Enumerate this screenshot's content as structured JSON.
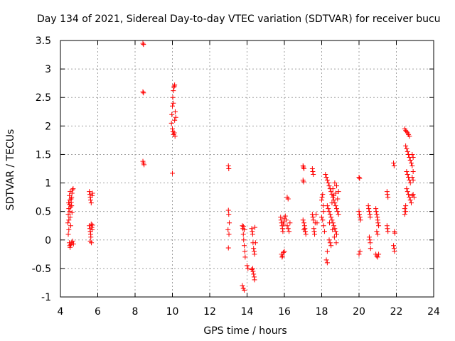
{
  "chart_data": {
    "type": "scatter",
    "title": "Day 134 of 2021, Sidereal Day-to-day VTEC variation (SDTVAR) for receiver bucu",
    "xlabel": "GPS time / hours",
    "ylabel": "SDTVAR / TECUs",
    "xlim": [
      4,
      24
    ],
    "ylim": [
      -1,
      3.5
    ],
    "xticks": [
      4,
      6,
      8,
      10,
      12,
      14,
      16,
      18,
      20,
      22,
      24
    ],
    "yticks": [
      -1,
      -0.5,
      0,
      0.5,
      1,
      1.5,
      2,
      2.5,
      3,
      3.5
    ],
    "xtick_labels": [
      "4",
      "6",
      "8",
      "10",
      "12",
      "14",
      "16",
      "18",
      "20",
      "22",
      "24"
    ],
    "ytick_labels": [
      "-1",
      "-0.5",
      "0",
      "0.5",
      "1",
      "1.5",
      "2",
      "2.5",
      "3",
      "3.5"
    ],
    "grid": true,
    "marker": "+",
    "color": "#ff0000",
    "series": [
      {
        "name": "SDTVAR",
        "points": [
          [
            4.4,
            0.3
          ],
          [
            4.42,
            0.45
          ],
          [
            4.45,
            0.55
          ],
          [
            4.48,
            0.62
          ],
          [
            4.5,
            0.7
          ],
          [
            4.52,
            0.4
          ],
          [
            4.55,
            0.58
          ],
          [
            4.58,
            0.66
          ],
          [
            4.6,
            0.75
          ],
          [
            4.62,
            0.82
          ],
          [
            4.65,
            0.88
          ],
          [
            4.68,
            0.9
          ],
          [
            4.45,
            0.35
          ],
          [
            4.5,
            0.5
          ],
          [
            4.55,
            0.25
          ],
          [
            4.6,
            0.6
          ],
          [
            4.42,
            0.1
          ],
          [
            4.45,
            0.18
          ],
          [
            4.48,
            -0.05
          ],
          [
            4.5,
            -0.1
          ],
          [
            4.52,
            -0.13
          ],
          [
            4.55,
            -0.08
          ],
          [
            4.6,
            -0.05
          ],
          [
            4.65,
            -0.02
          ],
          [
            4.7,
            -0.07
          ],
          [
            4.48,
            0.78
          ],
          [
            4.52,
            0.85
          ],
          [
            4.57,
            0.72
          ],
          [
            4.62,
            0.48
          ],
          [
            4.44,
            0.65
          ],
          [
            5.55,
            0.85
          ],
          [
            5.58,
            0.8
          ],
          [
            5.6,
            0.75
          ],
          [
            5.62,
            0.7
          ],
          [
            5.65,
            0.65
          ],
          [
            5.7,
            0.78
          ],
          [
            5.72,
            0.82
          ],
          [
            5.55,
            0.25
          ],
          [
            5.58,
            0.2
          ],
          [
            5.6,
            0.15
          ],
          [
            5.62,
            0.1
          ],
          [
            5.65,
            0.28
          ],
          [
            5.68,
            0.22
          ],
          [
            5.6,
            -0.02
          ],
          [
            5.63,
            0.05
          ],
          [
            5.66,
            -0.05
          ],
          [
            5.7,
            0.18
          ],
          [
            5.72,
            0.26
          ],
          [
            8.42,
            3.45
          ],
          [
            8.45,
            3.43
          ],
          [
            8.42,
            2.6
          ],
          [
            8.45,
            2.58
          ],
          [
            8.42,
            1.38
          ],
          [
            8.45,
            1.35
          ],
          [
            8.48,
            1.32
          ],
          [
            9.95,
            2.05
          ],
          [
            9.97,
            2.2
          ],
          [
            10.0,
            2.35
          ],
          [
            10.02,
            2.5
          ],
          [
            10.05,
            2.62
          ],
          [
            10.08,
            2.68
          ],
          [
            10.1,
            2.7
          ],
          [
            10.12,
            2.72
          ],
          [
            10.0,
            1.95
          ],
          [
            10.03,
            1.9
          ],
          [
            10.06,
            1.85
          ],
          [
            10.1,
            1.88
          ],
          [
            10.14,
            1.82
          ],
          [
            10.12,
            2.1
          ],
          [
            10.15,
            2.25
          ],
          [
            10.18,
            2.15
          ],
          [
            10.05,
            2.4
          ],
          [
            10.0,
            1.17
          ],
          [
            13.0,
            1.3
          ],
          [
            13.02,
            1.25
          ],
          [
            13.0,
            0.52
          ],
          [
            13.02,
            0.45
          ],
          [
            13.05,
            0.3
          ],
          [
            12.98,
            0.18
          ],
          [
            13.03,
            0.1
          ],
          [
            13.0,
            -0.14
          ],
          [
            13.75,
            0.25
          ],
          [
            13.78,
            0.2
          ],
          [
            13.8,
            0.1
          ],
          [
            13.82,
            0.0
          ],
          [
            13.85,
            -0.1
          ],
          [
            13.88,
            -0.2
          ],
          [
            13.9,
            -0.3
          ],
          [
            13.8,
            0.24
          ],
          [
            13.85,
            0.18
          ],
          [
            13.75,
            -0.8
          ],
          [
            13.8,
            -0.85
          ],
          [
            13.85,
            -0.88
          ],
          [
            14.0,
            -0.45
          ],
          [
            14.05,
            -0.5
          ],
          [
            14.25,
            0.2
          ],
          [
            14.28,
            0.15
          ],
          [
            14.3,
            0.1
          ],
          [
            14.32,
            -0.05
          ],
          [
            14.35,
            -0.15
          ],
          [
            14.38,
            -0.2
          ],
          [
            14.4,
            -0.25
          ],
          [
            14.3,
            -0.5
          ],
          [
            14.32,
            -0.55
          ],
          [
            14.35,
            -0.6
          ],
          [
            14.38,
            -0.65
          ],
          [
            14.4,
            -0.7
          ],
          [
            14.25,
            -0.52
          ],
          [
            14.45,
            -0.05
          ],
          [
            14.42,
            0.22
          ],
          [
            15.8,
            0.4
          ],
          [
            15.82,
            0.35
          ],
          [
            15.85,
            0.3
          ],
          [
            15.88,
            0.25
          ],
          [
            15.9,
            0.2
          ],
          [
            15.92,
            0.15
          ],
          [
            15.95,
            0.28
          ],
          [
            15.98,
            0.32
          ],
          [
            16.0,
            0.38
          ],
          [
            16.05,
            0.42
          ],
          [
            16.1,
            0.35
          ],
          [
            16.15,
            0.25
          ],
          [
            16.2,
            0.2
          ],
          [
            16.25,
            0.15
          ],
          [
            16.3,
            0.3
          ],
          [
            15.85,
            -0.25
          ],
          [
            15.88,
            -0.3
          ],
          [
            15.9,
            -0.28
          ],
          [
            15.95,
            -0.22
          ],
          [
            16.0,
            -0.2
          ],
          [
            16.15,
            0.75
          ],
          [
            16.2,
            0.72
          ],
          [
            17.0,
            1.3
          ],
          [
            17.02,
            1.28
          ],
          [
            17.05,
            1.25
          ],
          [
            17.0,
            1.05
          ],
          [
            17.03,
            1.02
          ],
          [
            17.05,
            0.3
          ],
          [
            17.08,
            0.25
          ],
          [
            17.1,
            0.2
          ],
          [
            17.12,
            0.15
          ],
          [
            17.15,
            0.1
          ],
          [
            17.0,
            0.35
          ],
          [
            17.05,
            0.18
          ],
          [
            17.5,
            1.25
          ],
          [
            17.52,
            1.2
          ],
          [
            17.55,
            1.15
          ],
          [
            17.5,
            0.45
          ],
          [
            17.53,
            0.4
          ],
          [
            17.55,
            0.35
          ],
          [
            17.58,
            0.2
          ],
          [
            17.6,
            0.15
          ],
          [
            17.62,
            0.1
          ],
          [
            17.65,
            0.3
          ],
          [
            17.7,
            0.45
          ],
          [
            17.75,
            0.3
          ],
          [
            18.0,
            0.7
          ],
          [
            18.02,
            0.75
          ],
          [
            18.05,
            0.8
          ],
          [
            18.08,
            0.6
          ],
          [
            18.1,
            0.5
          ],
          [
            18.0,
            0.4
          ],
          [
            18.05,
            0.35
          ],
          [
            18.1,
            0.25
          ],
          [
            18.15,
            0.15
          ],
          [
            18.2,
            1.15
          ],
          [
            18.25,
            1.1
          ],
          [
            18.3,
            1.05
          ],
          [
            18.35,
            1.0
          ],
          [
            18.4,
            0.95
          ],
          [
            18.45,
            0.9
          ],
          [
            18.5,
            0.85
          ],
          [
            18.55,
            0.8
          ],
          [
            18.6,
            0.75
          ],
          [
            18.65,
            0.7
          ],
          [
            18.7,
            0.65
          ],
          [
            18.75,
            0.6
          ],
          [
            18.8,
            0.55
          ],
          [
            18.85,
            0.5
          ],
          [
            18.9,
            0.45
          ],
          [
            18.3,
            0.6
          ],
          [
            18.35,
            0.55
          ],
          [
            18.4,
            0.5
          ],
          [
            18.45,
            0.45
          ],
          [
            18.5,
            0.4
          ],
          [
            18.55,
            0.35
          ],
          [
            18.6,
            0.3
          ],
          [
            18.65,
            0.25
          ],
          [
            18.7,
            0.2
          ],
          [
            18.75,
            0.15
          ],
          [
            18.8,
            0.1
          ],
          [
            18.4,
            0.0
          ],
          [
            18.45,
            -0.05
          ],
          [
            18.5,
            -0.1
          ],
          [
            18.3,
            -0.2
          ],
          [
            18.25,
            -0.35
          ],
          [
            18.3,
            -0.4
          ],
          [
            18.6,
            0.9
          ],
          [
            18.7,
            1.0
          ],
          [
            18.8,
            0.95
          ],
          [
            18.9,
            0.85
          ],
          [
            18.55,
            0.65
          ],
          [
            18.65,
            0.78
          ],
          [
            18.75,
            0.82
          ],
          [
            18.85,
            0.72
          ],
          [
            18.42,
            0.3
          ],
          [
            18.58,
            0.18
          ],
          [
            18.68,
            0.05
          ],
          [
            18.78,
            -0.05
          ],
          [
            20.0,
            1.1
          ],
          [
            20.03,
            1.08
          ],
          [
            20.0,
            0.5
          ],
          [
            20.02,
            0.45
          ],
          [
            20.05,
            0.4
          ],
          [
            20.08,
            0.35
          ],
          [
            20.0,
            -0.25
          ],
          [
            20.05,
            -0.2
          ],
          [
            20.5,
            0.6
          ],
          [
            20.52,
            0.55
          ],
          [
            20.55,
            0.5
          ],
          [
            20.58,
            0.45
          ],
          [
            20.6,
            0.4
          ],
          [
            20.55,
            0.05
          ],
          [
            20.58,
            0.0
          ],
          [
            20.6,
            -0.05
          ],
          [
            20.62,
            -0.15
          ],
          [
            20.9,
            0.55
          ],
          [
            20.92,
            0.5
          ],
          [
            20.95,
            0.45
          ],
          [
            20.98,
            0.4
          ],
          [
            21.0,
            0.35
          ],
          [
            21.02,
            0.3
          ],
          [
            21.05,
            0.25
          ],
          [
            21.0,
            0.1
          ],
          [
            20.95,
            0.15
          ],
          [
            20.9,
            -0.25
          ],
          [
            20.95,
            -0.28
          ],
          [
            21.0,
            -0.3
          ],
          [
            21.05,
            -0.25
          ],
          [
            21.5,
            0.85
          ],
          [
            21.52,
            0.8
          ],
          [
            21.55,
            0.75
          ],
          [
            21.5,
            0.25
          ],
          [
            21.52,
            0.2
          ],
          [
            21.55,
            0.15
          ],
          [
            21.85,
            1.35
          ],
          [
            21.88,
            1.3
          ],
          [
            21.9,
            0.15
          ],
          [
            21.92,
            0.12
          ],
          [
            21.85,
            -0.1
          ],
          [
            21.88,
            -0.15
          ],
          [
            21.9,
            -0.2
          ],
          [
            22.45,
            1.95
          ],
          [
            22.5,
            1.92
          ],
          [
            22.55,
            1.9
          ],
          [
            22.6,
            1.88
          ],
          [
            22.65,
            1.85
          ],
          [
            22.7,
            1.82
          ],
          [
            22.5,
            1.65
          ],
          [
            22.55,
            1.6
          ],
          [
            22.6,
            1.55
          ],
          [
            22.65,
            1.5
          ],
          [
            22.7,
            1.45
          ],
          [
            22.75,
            1.4
          ],
          [
            22.8,
            1.35
          ],
          [
            22.85,
            1.3
          ],
          [
            22.55,
            1.2
          ],
          [
            22.6,
            1.15
          ],
          [
            22.65,
            1.1
          ],
          [
            22.7,
            1.05
          ],
          [
            22.75,
            1.0
          ],
          [
            22.55,
            0.9
          ],
          [
            22.6,
            0.85
          ],
          [
            22.65,
            0.8
          ],
          [
            22.7,
            0.75
          ],
          [
            22.75,
            0.7
          ],
          [
            22.8,
            0.65
          ],
          [
            22.5,
            0.6
          ],
          [
            22.45,
            0.55
          ],
          [
            22.5,
            0.5
          ],
          [
            22.45,
            0.45
          ],
          [
            22.85,
            1.5
          ],
          [
            22.9,
            1.45
          ],
          [
            22.9,
            1.2
          ],
          [
            22.85,
            1.1
          ],
          [
            22.9,
            1.05
          ],
          [
            22.9,
            0.8
          ],
          [
            22.85,
            0.78
          ],
          [
            22.95,
            0.75
          ]
        ]
      }
    ]
  }
}
